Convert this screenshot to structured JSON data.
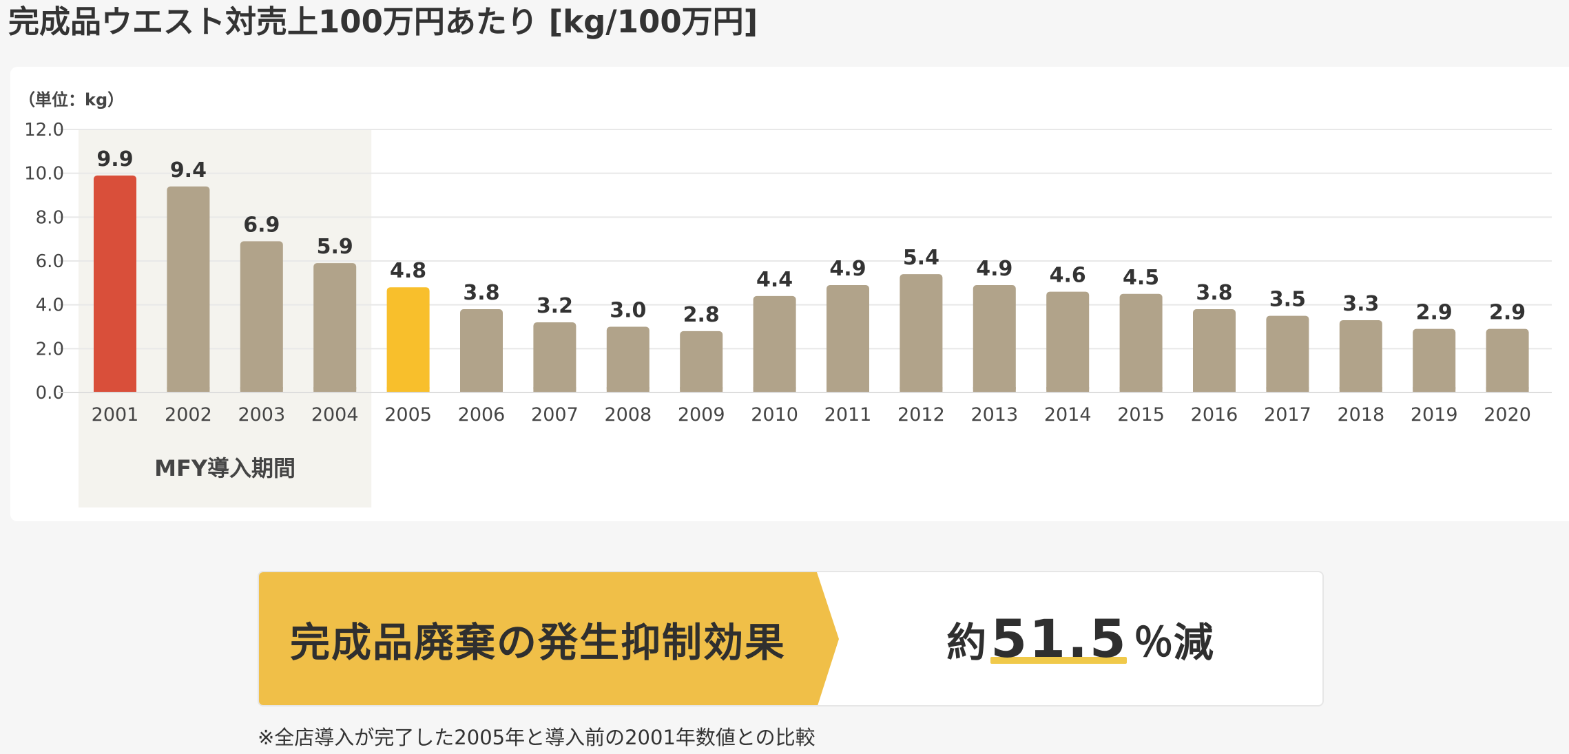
{
  "page": {
    "title": "完成品ウエスト対売上100万円あたり [kg/100万円]"
  },
  "chart_data": {
    "type": "bar",
    "unit_label": "（単位：kg）",
    "categories": [
      "2001",
      "2002",
      "2003",
      "2004",
      "2005",
      "2006",
      "2007",
      "2008",
      "2009",
      "2010",
      "2011",
      "2012",
      "2013",
      "2014",
      "2015",
      "2016",
      "2017",
      "2018",
      "2019",
      "2020"
    ],
    "values": [
      9.9,
      9.4,
      6.9,
      5.9,
      4.8,
      3.8,
      3.2,
      3.0,
      2.8,
      4.4,
      4.9,
      5.4,
      4.9,
      4.6,
      4.5,
      3.8,
      3.5,
      3.3,
      2.9,
      2.9
    ],
    "value_labels": [
      "9.9",
      "9.4",
      "6.9",
      "5.9",
      "4.8",
      "3.8",
      "3.2",
      "3.0",
      "2.8",
      "4.4",
      "4.9",
      "5.4",
      "4.9",
      "4.6",
      "4.5",
      "3.8",
      "3.5",
      "3.3",
      "2.9",
      "2.9"
    ],
    "ylim": [
      0,
      12
    ],
    "yticks": [
      "0.0",
      "2.0",
      "4.0",
      "6.0",
      "8.0",
      "10.0",
      "12.0"
    ],
    "grid": true,
    "colors": {
      "default": "#b1a38a",
      "highlight_2001": "#d94f3a",
      "highlight_2005": "#f8bf2c",
      "shade": "#f4f3ee",
      "grid": "#e8e8e8"
    },
    "bar_colors": [
      "#d94f3a",
      "#b1a38a",
      "#b1a38a",
      "#b1a38a",
      "#f8bf2c",
      "#b1a38a",
      "#b1a38a",
      "#b1a38a",
      "#b1a38a",
      "#b1a38a",
      "#b1a38a",
      "#b1a38a",
      "#b1a38a",
      "#b1a38a",
      "#b1a38a",
      "#b1a38a",
      "#b1a38a",
      "#b1a38a",
      "#b1a38a",
      "#b1a38a"
    ],
    "shaded_region": {
      "label": "MFY導入期間",
      "from": "2001",
      "to": "2004"
    }
  },
  "effect": {
    "label": "完成品廃棄の発生抑制効果",
    "prefix": "約",
    "value": "51.5",
    "suffix": "％減",
    "accent_color": "#f0bf48"
  },
  "footnote": "※全店導入が完了した2005年と導入前の2001年数値との比較"
}
